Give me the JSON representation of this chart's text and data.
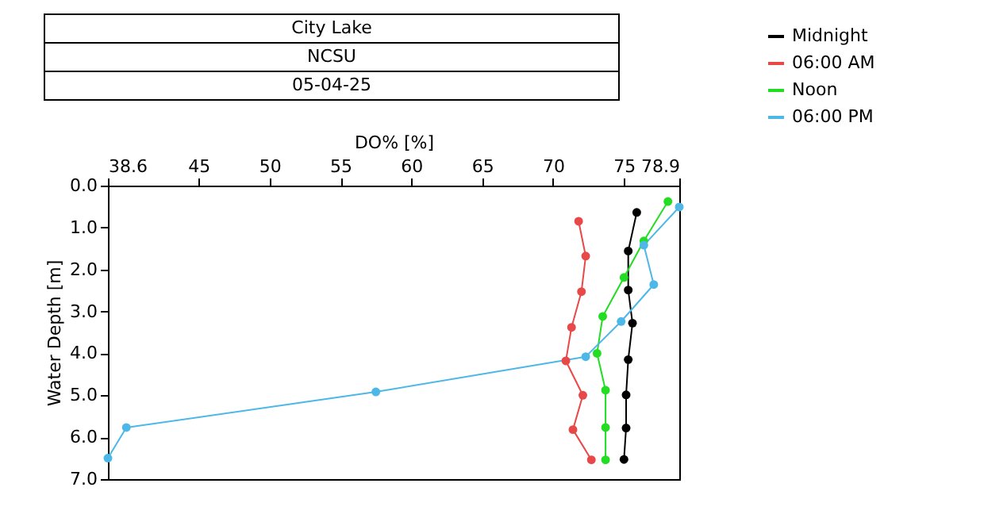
{
  "chart_data": {
    "type": "line",
    "title": "City Lake",
    "subtitle": "NCSU",
    "annotations": [
      "05-04-25"
    ],
    "xlabel": "DO% [%]",
    "ylabel": "Water Depth [m]",
    "xlim": [
      38.6,
      78.9
    ],
    "xticks": [
      38.6,
      45,
      50,
      55,
      60,
      65,
      70,
      75,
      78.9
    ],
    "ylim": [
      7,
      0
    ],
    "yticks": [
      {
        "value": 0,
        "label": "0.0"
      },
      {
        "value": 1,
        "label": "1.0"
      },
      {
        "value": 2,
        "label": "2.0"
      },
      {
        "value": 3,
        "label": "3.0"
      },
      {
        "value": 4,
        "label": "4.0"
      },
      {
        "value": 5,
        "label": "5.0"
      },
      {
        "value": 6,
        "label": "6.0"
      },
      {
        "value": 7,
        "label": "7.0"
      }
    ],
    "grid": false,
    "legend": "top right",
    "marker": "circle",
    "line_style": "solid",
    "series": [
      {
        "name": "Midnight",
        "color": "#000000",
        "x": [
          75.9,
          75.3,
          75.3,
          75.6,
          75.3,
          75.15,
          75.15,
          75.0
        ],
        "values": [
          0.64,
          1.56,
          2.49,
          3.28,
          4.15,
          4.99,
          5.78,
          6.53
        ]
      },
      {
        "name": "06:00 AM",
        "color": "#e84848",
        "x": [
          71.8,
          72.3,
          72.0,
          71.3,
          70.9,
          72.1,
          71.4,
          72.7
        ],
        "values": [
          0.85,
          1.68,
          2.53,
          3.38,
          4.18,
          5.0,
          5.82,
          6.54
        ]
      },
      {
        "name": "Noon",
        "color": "#22dd22",
        "x": [
          78.1,
          76.4,
          75.0,
          73.5,
          73.1,
          73.7,
          73.7,
          73.7
        ],
        "values": [
          0.38,
          1.32,
          2.19,
          3.12,
          4.0,
          4.88,
          5.77,
          6.54
        ]
      },
      {
        "name": "06:00 PM",
        "color": "#4db8e8",
        "x": [
          78.9,
          76.4,
          77.1,
          74.8,
          72.3,
          57.5,
          39.9,
          38.6
        ],
        "values": [
          0.51,
          1.42,
          2.36,
          3.24,
          4.08,
          4.92,
          5.77,
          6.5
        ]
      }
    ]
  }
}
